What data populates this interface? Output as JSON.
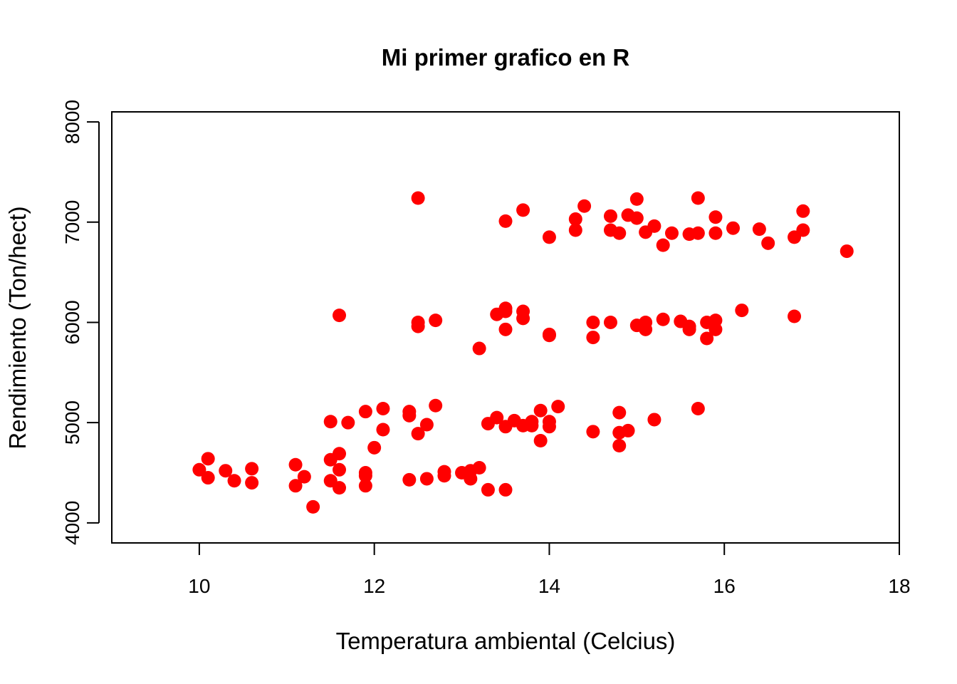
{
  "chart_data": {
    "type": "scatter",
    "title": "Mi primer grafico en R",
    "xlabel": "Temperatura ambiental (Celcius)",
    "ylabel": "Rendimiento (Ton/hect)",
    "xlim": [
      9,
      18
    ],
    "ylim": [
      3800,
      8100
    ],
    "x_ticks": [
      10,
      12,
      14,
      16,
      18
    ],
    "y_ticks": [
      4000,
      5000,
      6000,
      7000,
      8000
    ],
    "x_tick_labels": [
      "10",
      "12",
      "14",
      "16",
      "18"
    ],
    "y_tick_labels": [
      "4000",
      "5000",
      "6000",
      "7000",
      "8000"
    ],
    "grid": false,
    "marker_color": "#ff0000",
    "points": [
      [
        12.5,
        7240
      ],
      [
        15.7,
        7240
      ],
      [
        15.0,
        7230
      ],
      [
        14.4,
        7160
      ],
      [
        13.7,
        7120
      ],
      [
        16.9,
        7110
      ],
      [
        14.7,
        7060
      ],
      [
        14.9,
        7070
      ],
      [
        15.9,
        7050
      ],
      [
        15.0,
        7040
      ],
      [
        14.3,
        7030
      ],
      [
        13.5,
        7010
      ],
      [
        15.2,
        6960
      ],
      [
        14.7,
        6920
      ],
      [
        14.3,
        6920
      ],
      [
        16.1,
        6940
      ],
      [
        16.4,
        6930
      ],
      [
        16.9,
        6920
      ],
      [
        14.8,
        6890
      ],
      [
        15.1,
        6900
      ],
      [
        15.4,
        6890
      ],
      [
        15.6,
        6880
      ],
      [
        15.7,
        6890
      ],
      [
        15.9,
        6890
      ],
      [
        14.0,
        6850
      ],
      [
        16.8,
        6850
      ],
      [
        16.5,
        6790
      ],
      [
        15.3,
        6770
      ],
      [
        17.4,
        6710
      ],
      [
        11.6,
        6070
      ],
      [
        12.5,
        6000
      ],
      [
        12.5,
        5960
      ],
      [
        12.7,
        6020
      ],
      [
        13.4,
        6080
      ],
      [
        13.5,
        6110
      ],
      [
        13.5,
        6140
      ],
      [
        13.7,
        6110
      ],
      [
        13.7,
        6040
      ],
      [
        13.5,
        5930
      ],
      [
        14.0,
        5880
      ],
      [
        14.0,
        5870
      ],
      [
        13.2,
        5740
      ],
      [
        14.5,
        6000
      ],
      [
        14.5,
        5850
      ],
      [
        14.7,
        6000
      ],
      [
        15.0,
        5970
      ],
      [
        15.1,
        6000
      ],
      [
        15.1,
        5930
      ],
      [
        15.3,
        6030
      ],
      [
        15.5,
        6010
      ],
      [
        15.6,
        5960
      ],
      [
        15.6,
        5930
      ],
      [
        15.8,
        6000
      ],
      [
        15.8,
        5840
      ],
      [
        15.9,
        6020
      ],
      [
        15.9,
        5930
      ],
      [
        16.2,
        6120
      ],
      [
        16.8,
        6060
      ],
      [
        11.5,
        5010
      ],
      [
        11.7,
        5000
      ],
      [
        11.9,
        5110
      ],
      [
        12.1,
        5140
      ],
      [
        12.1,
        4930
      ],
      [
        12.0,
        4750
      ],
      [
        12.4,
        5110
      ],
      [
        12.4,
        5070
      ],
      [
        12.5,
        4890
      ],
      [
        12.6,
        4980
      ],
      [
        12.7,
        5170
      ],
      [
        13.3,
        4990
      ],
      [
        13.4,
        5050
      ],
      [
        13.5,
        4960
      ],
      [
        13.6,
        5020
      ],
      [
        13.7,
        4970
      ],
      [
        13.8,
        4970
      ],
      [
        13.8,
        5010
      ],
      [
        13.9,
        5120
      ],
      [
        14.0,
        5010
      ],
      [
        14.0,
        4960
      ],
      [
        14.1,
        5160
      ],
      [
        13.9,
        4820
      ],
      [
        14.5,
        4910
      ],
      [
        14.8,
        5100
      ],
      [
        14.8,
        4900
      ],
      [
        14.8,
        4770
      ],
      [
        14.9,
        4920
      ],
      [
        15.2,
        5030
      ],
      [
        15.7,
        5140
      ],
      [
        10.0,
        4530
      ],
      [
        10.1,
        4640
      ],
      [
        10.1,
        4450
      ],
      [
        10.3,
        4520
      ],
      [
        10.4,
        4420
      ],
      [
        10.6,
        4540
      ],
      [
        10.6,
        4400
      ],
      [
        11.1,
        4580
      ],
      [
        11.1,
        4370
      ],
      [
        11.2,
        4460
      ],
      [
        11.3,
        4160
      ],
      [
        11.5,
        4630
      ],
      [
        11.5,
        4420
      ],
      [
        11.6,
        4690
      ],
      [
        11.6,
        4530
      ],
      [
        11.6,
        4350
      ],
      [
        11.9,
        4500
      ],
      [
        11.9,
        4470
      ],
      [
        11.9,
        4370
      ],
      [
        12.4,
        4430
      ],
      [
        12.6,
        4440
      ],
      [
        12.8,
        4510
      ],
      [
        12.8,
        4470
      ],
      [
        13.0,
        4500
      ],
      [
        13.1,
        4520
      ],
      [
        13.1,
        4440
      ],
      [
        13.2,
        4550
      ],
      [
        13.3,
        4330
      ],
      [
        13.5,
        4330
      ]
    ]
  }
}
